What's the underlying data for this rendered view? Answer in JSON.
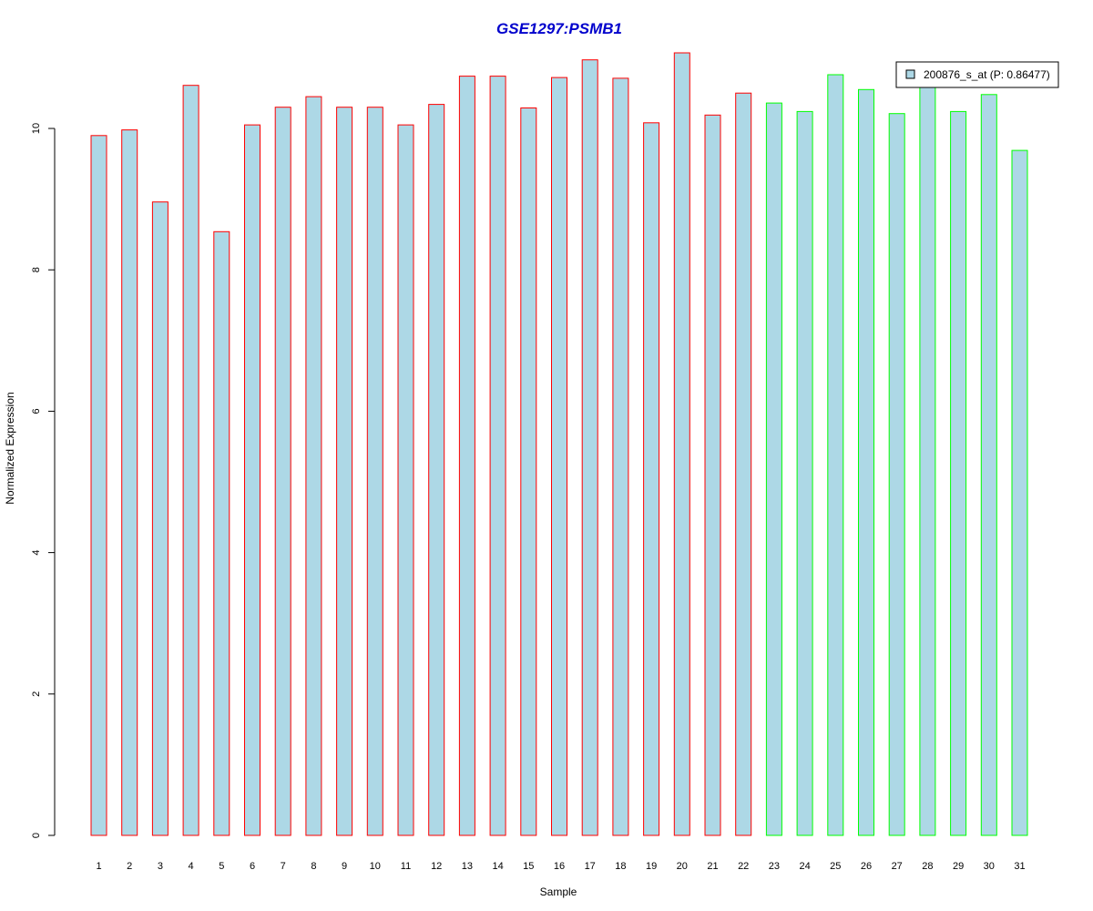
{
  "chart_data": {
    "type": "bar",
    "title": "GSE1297:PSMB1",
    "xlabel": "Sample",
    "ylabel": "Normalized Expression",
    "categories": [
      "1",
      "2",
      "3",
      "4",
      "5",
      "6",
      "7",
      "8",
      "9",
      "10",
      "11",
      "12",
      "13",
      "14",
      "15",
      "16",
      "17",
      "18",
      "19",
      "20",
      "21",
      "22",
      "23",
      "24",
      "25",
      "26",
      "27",
      "28",
      "29",
      "30",
      "31"
    ],
    "series": [
      {
        "name": "200876_s_at (P: 0.86477)",
        "values": [
          9.9,
          9.98,
          8.96,
          10.61,
          8.54,
          10.05,
          10.3,
          10.45,
          10.3,
          10.3,
          10.05,
          10.34,
          10.74,
          10.74,
          10.29,
          10.72,
          10.97,
          10.71,
          10.08,
          11.07,
          10.19,
          10.5,
          10.36,
          10.24,
          10.76,
          10.55,
          10.21,
          10.62,
          10.24,
          10.48,
          9.69
        ]
      }
    ],
    "ylim": [
      0,
      11.07
    ],
    "yticks": [
      "0",
      "2",
      "4",
      "6",
      "8",
      "10"
    ],
    "ytick_values": [
      0,
      2,
      4,
      6,
      8,
      10
    ],
    "groups": [
      {
        "samples": "1-22",
        "border_color": "#ff0000"
      },
      {
        "samples": "23-31",
        "border_color": "#00ff00"
      }
    ],
    "fill_color": "#add8e6",
    "legend_position": "top-right",
    "grid": false
  }
}
